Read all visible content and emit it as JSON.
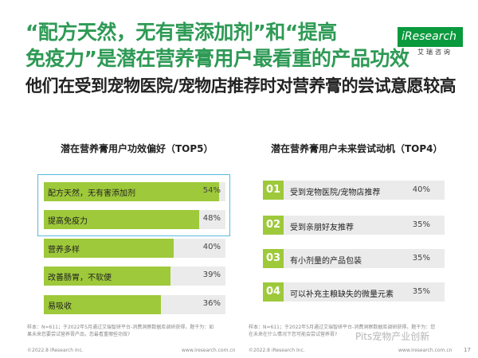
{
  "header": {
    "title_line1": "“配方天然，无有害添加剂”和“提高",
    "title_line2": "免疫力”是潜在营养膏用户最看重的产品功效",
    "title_line3": "他们在受到宠物医院/宠物店推荐时对营养膏的尝试意愿较高",
    "logo_text": "iResearch",
    "logo_sub": "艾瑞咨询"
  },
  "chart_data": [
    {
      "type": "bar",
      "title": "潜在营养膏用户功效偏好（TOP5）",
      "categories": [
        "配方天然，无有害添加剂",
        "提高免疫力",
        "营养多样",
        "改善肠胃，不软便",
        "易吸收"
      ],
      "values": [
        54,
        48,
        40,
        39,
        36
      ],
      "value_labels": [
        "54%",
        "48%",
        "40%",
        "39%",
        "36%"
      ],
      "highlighted": [
        "配方天然，无有害添加剂",
        "提高免疫力"
      ],
      "xlim": [
        0,
        56
      ],
      "colors": {
        "bar": "#9ec93a",
        "track": "#ebebeb",
        "highlight_border": "#5ab8e0"
      }
    },
    {
      "type": "table",
      "title": "潜在营养膏用户未来尝试动机（TOP4）",
      "rows": [
        {
          "rank": "01",
          "label": "受到宠物医院/宠物店推荐",
          "value": 40,
          "value_label": "40%"
        },
        {
          "rank": "02",
          "label": "受到亲朋好友推荐",
          "value": 35,
          "value_label": "35%"
        },
        {
          "rank": "03",
          "label": "有小剂量的产品包装",
          "value": 35,
          "value_label": "35%"
        },
        {
          "rank": "04",
          "label": "可以补充主粮缺失的微量元素",
          "value": 35,
          "value_label": "35%"
        }
      ]
    }
  ],
  "notes": {
    "left": "样本：N=611；于2022年5月通过艾瑞智研平台-消费洞察数据库调研获得。题干为：如果未来您要尝试营养膏产品，您最看重哪些功效?",
    "right": "样本：N=611；于2022年5月通过艾瑞智研平台-消费洞察数据库调研获得。题干为：您在未来在什么情况下您可能会尝试营养膏?"
  },
  "footer": {
    "left_copyright": "©2022.8 iResearch Inc.",
    "left_url": "www.iresearch.com.cn",
    "right_copyright": "©2022.8 iResearch Inc.",
    "right_url": "www.iresearch.com.cn",
    "watermark": "Pits宠物产业创新",
    "page_number": "17"
  }
}
